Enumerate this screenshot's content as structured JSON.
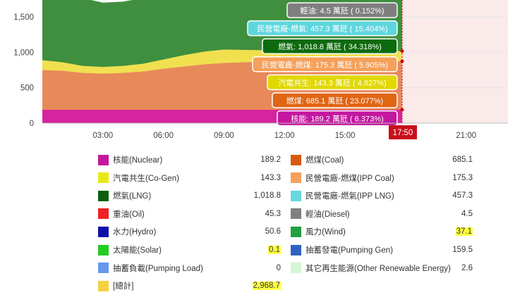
{
  "chart_data": {
    "type": "area",
    "x_ticks": [
      "03:00",
      "06:00",
      "09:00",
      "12:00",
      "15:00",
      "21:00"
    ],
    "current_time": "17:50",
    "y_ticks": [
      "0",
      "500",
      "1,000",
      "1,500"
    ],
    "ylim": [
      0,
      1800
    ],
    "x_hours": [
      0,
      1,
      2,
      3,
      4,
      5,
      6,
      7,
      8,
      9,
      10,
      11,
      12,
      13,
      14,
      15,
      16,
      17,
      17.83
    ],
    "series": [
      {
        "name": "核能",
        "color": "#d6249f",
        "values": [
          189,
          189,
          189,
          189,
          189,
          189,
          189,
          189,
          189,
          189,
          189,
          189,
          189,
          189,
          189,
          189,
          189,
          189,
          189
        ]
      },
      {
        "name": "燃煤",
        "color": "#e8895a",
        "values": [
          560,
          550,
          520,
          510,
          520,
          540,
          580,
          610,
          640,
          660,
          670,
          680,
          685,
          685,
          685,
          685,
          685,
          685,
          685
        ]
      },
      {
        "name": "汽電共生",
        "color": "#f0e050",
        "values": [
          140,
          120,
          100,
          95,
          100,
          110,
          130,
          160,
          180,
          190,
          175,
          160,
          150,
          145,
          143,
          143,
          143,
          143,
          143
        ]
      },
      {
        "name": "燃氣",
        "color": "#3f8f3f",
        "values": [
          1100,
          1000,
          950,
          900,
          900,
          920,
          1000,
          1050,
          1070,
          1060,
          1040,
          1030,
          1025,
          1020,
          1019,
          1019,
          1019,
          1019,
          1019
        ]
      }
    ],
    "tooltip": {
      "time_label": "17:50",
      "items": [
        {
          "text": "輕油: 4.5 萬瓩 ( 0.152%)",
          "bg": "#7f7f7f"
        },
        {
          "text": "民營電廠-燃氣: 457.3 萬瓩 ( 15.404%)",
          "bg": "#5fd6de"
        },
        {
          "text": "燃氣: 1,018.8 萬瓩 ( 34.318%)",
          "bg": "#0c6b0c"
        },
        {
          "text": "民營電廠-燃煤: 175.3 萬瓩 ( 5.905%)",
          "bg": "#f5a05b"
        },
        {
          "text": "汽電共生: 143.3 萬瓩 ( 4.827%)",
          "bg": "#e0d800"
        },
        {
          "text": "燃煤: 685.1 萬瓩 ( 23.077%)",
          "bg": "#e06514"
        },
        {
          "text": "核能: 189.2 萬瓩 ( 6.373%)",
          "bg": "#c4179f"
        }
      ]
    }
  },
  "legend": {
    "left": [
      {
        "label": "核能(Nuclear)",
        "value": "189.2",
        "color": "#c4179f",
        "highlight": false
      },
      {
        "label": "汽電共生(Co-Gen)",
        "value": "143.3",
        "color": "#e8e818",
        "highlight": false
      },
      {
        "label": "燃氣(LNG)",
        "value": "1,018.8",
        "color": "#0b5e0b",
        "highlight": false
      },
      {
        "label": "重油(Oil)",
        "value": "45.3",
        "color": "#ee2222",
        "highlight": false
      },
      {
        "label": "水力(Hydro)",
        "value": "50.6",
        "color": "#1010a8",
        "highlight": false
      },
      {
        "label": "太陽能(Solar)",
        "value": "0.1",
        "color": "#22cc22",
        "highlight": true
      },
      {
        "label": "抽蓄負載(Pumping Load)",
        "value": "0",
        "color": "#6699ee",
        "highlight": false
      },
      {
        "label": "[總計]",
        "value": "2,968.7",
        "color": "#f5d040",
        "highlight": true
      }
    ],
    "right": [
      {
        "label": "燃煤(Coal)",
        "value": "685.1",
        "color": "#d85a10",
        "highlight": false
      },
      {
        "label": "民營電廠-燃煤(IPP Coal)",
        "value": "175.3",
        "color": "#f5a05b",
        "highlight": false
      },
      {
        "label": "民營電廠-燃氣(IPP LNG)",
        "value": "457.3",
        "color": "#66d8dd",
        "highlight": false
      },
      {
        "label": "輕油(Diesel)",
        "value": "4.5",
        "color": "#808080",
        "highlight": false
      },
      {
        "label": "風力(Wind)",
        "value": "37.1",
        "color": "#22a040",
        "highlight": true
      },
      {
        "label": "抽蓄發電(Pumping Gen)",
        "value": "159.5",
        "color": "#2f62c4",
        "highlight": false
      },
      {
        "label": "其它再生能源(Other Renewable Energy)",
        "value": "2.6",
        "color": "#d6f5d6",
        "highlight": false
      }
    ]
  }
}
